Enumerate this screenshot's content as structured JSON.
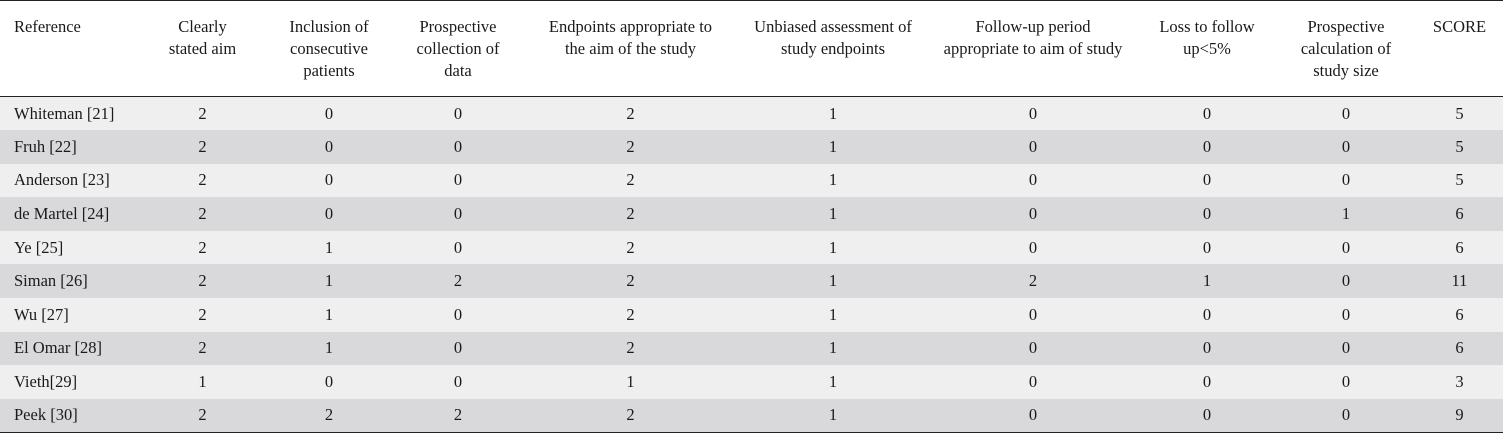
{
  "table": {
    "headers": [
      "Reference",
      "Clearly stated aim",
      "Inclusion of consecutive patients",
      "Prospective collection of data",
      "Endpoints appropriate to the aim of the study",
      "Unbiased assessment of study endpoints",
      "Follow-up period appropriate to aim of study",
      "Loss to follow up<5%",
      "Prospective calculation of study size",
      "SCORE"
    ],
    "rows": [
      [
        "Whiteman [21]",
        "2",
        "0",
        "0",
        "2",
        "1",
        "0",
        "0",
        "0",
        "5"
      ],
      [
        "Fruh [22]",
        "2",
        "0",
        "0",
        "2",
        "1",
        "0",
        "0",
        "0",
        "5"
      ],
      [
        "Anderson [23]",
        "2",
        "0",
        "0",
        "2",
        "1",
        "0",
        "0",
        "0",
        "5"
      ],
      [
        "de Martel [24]",
        "2",
        "0",
        "0",
        "2",
        "1",
        "0",
        "0",
        "1",
        "6"
      ],
      [
        "Ye [25]",
        "2",
        "1",
        "0",
        "2",
        "1",
        "0",
        "0",
        "0",
        "6"
      ],
      [
        "Siman [26]",
        "2",
        "1",
        "2",
        "2",
        "1",
        "2",
        "1",
        "0",
        "11"
      ],
      [
        "Wu [27]",
        "2",
        "1",
        "0",
        "2",
        "1",
        "0",
        "0",
        "0",
        "6"
      ],
      [
        "El Omar [28]",
        "2",
        "1",
        "0",
        "2",
        "1",
        "0",
        "0",
        "0",
        "6"
      ],
      [
        "Vieth[29]",
        "1",
        "0",
        "0",
        "1",
        "1",
        "0",
        "0",
        "0",
        "3"
      ],
      [
        "Peek [30]",
        "2",
        "2",
        "2",
        "2",
        "1",
        "0",
        "0",
        "0",
        "9"
      ]
    ]
  }
}
